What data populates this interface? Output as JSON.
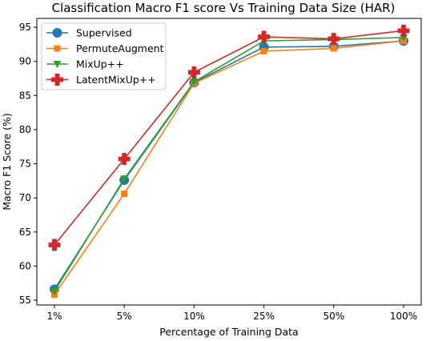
{
  "chart_data": {
    "type": "line",
    "title": "Classification Macro F1 score Vs Training Data Size (HAR)",
    "xlabel": "Percentage of Training Data",
    "ylabel": "Macro F1 Score (%)",
    "categories": [
      "1%",
      "5%",
      "10%",
      "25%",
      "50%",
      "100%"
    ],
    "ylim": [
      54.3,
      96.3
    ],
    "yticks": [
      55,
      60,
      65,
      70,
      75,
      80,
      85,
      90,
      95
    ],
    "grid": false,
    "legend_position": "top-left",
    "series": [
      {
        "name": "Supervised",
        "color": "#1f77b4",
        "marker": "circle",
        "values": [
          56.6,
          72.6,
          86.9,
          92.1,
          92.2,
          93.0
        ]
      },
      {
        "name": "PermuteAugment",
        "color": "#ff7f0e",
        "marker": "square",
        "values": [
          55.8,
          70.6,
          86.8,
          91.5,
          91.9,
          93.0
        ]
      },
      {
        "name": "MixUp++",
        "color": "#2ca02c",
        "marker": "triangle-down",
        "values": [
          56.3,
          72.8,
          87.0,
          93.0,
          93.2,
          93.5
        ]
      },
      {
        "name": "LatentMixUp++",
        "color": "#d62728",
        "marker": "plus",
        "values": [
          63.1,
          75.7,
          88.4,
          93.6,
          93.3,
          94.5
        ]
      }
    ]
  }
}
